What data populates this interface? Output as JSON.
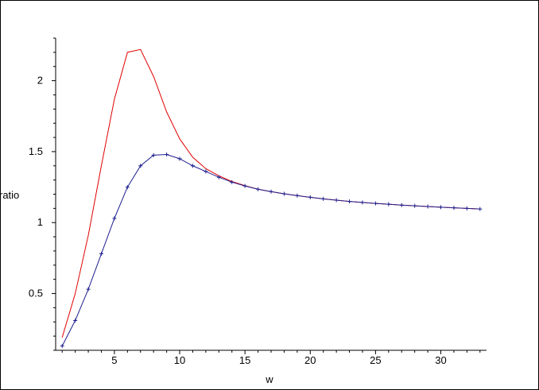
{
  "chart_data": {
    "type": "line",
    "title": "",
    "xlabel": "w",
    "ylabel": "ratio",
    "xlim": [
      0.5,
      33.5
    ],
    "ylim": [
      0.1,
      2.3
    ],
    "xticks": [
      5,
      10,
      15,
      20,
      25,
      30
    ],
    "xtick_labels": [
      "5",
      "10",
      "15",
      "20",
      "25",
      "30"
    ],
    "yticks": [
      0.5,
      1,
      1.5,
      2
    ],
    "ytick_labels": [
      "0.5",
      "1",
      "1.5",
      "2"
    ],
    "grid": false,
    "legend": "none",
    "series": [
      {
        "color": "#e00000",
        "marker": "none",
        "x": [
          1,
          2,
          3,
          4,
          5,
          6,
          7,
          8,
          9,
          10,
          11,
          12,
          13,
          14,
          15,
          16,
          17,
          18,
          19,
          20,
          21,
          22,
          23,
          24,
          25,
          26,
          27,
          28,
          29,
          30,
          31,
          32,
          33
        ],
        "y": [
          0.19,
          0.5,
          0.91,
          1.4,
          1.87,
          2.2,
          2.22,
          2.03,
          1.78,
          1.59,
          1.46,
          1.38,
          1.33,
          1.29,
          1.26,
          1.235,
          1.218,
          1.203,
          1.19,
          1.178,
          1.167,
          1.158,
          1.149,
          1.142,
          1.135,
          1.129,
          1.123,
          1.118,
          1.113,
          1.108,
          1.104,
          1.1,
          1.096
        ]
      },
      {
        "color": "#1f1f8f",
        "marker": "plus",
        "x": [
          1,
          2,
          3,
          4,
          5,
          6,
          7,
          8,
          9,
          10,
          11,
          12,
          13,
          14,
          15,
          16,
          17,
          18,
          19,
          20,
          21,
          22,
          23,
          24,
          25,
          26,
          27,
          28,
          29,
          30,
          31,
          32,
          33
        ],
        "y": [
          0.13,
          0.31,
          0.53,
          0.78,
          1.03,
          1.25,
          1.4,
          1.475,
          1.48,
          1.45,
          1.4,
          1.36,
          1.32,
          1.285,
          1.258,
          1.235,
          1.218,
          1.203,
          1.19,
          1.178,
          1.167,
          1.158,
          1.149,
          1.142,
          1.135,
          1.129,
          1.123,
          1.118,
          1.113,
          1.108,
          1.104,
          1.1,
          1.096
        ]
      }
    ]
  }
}
